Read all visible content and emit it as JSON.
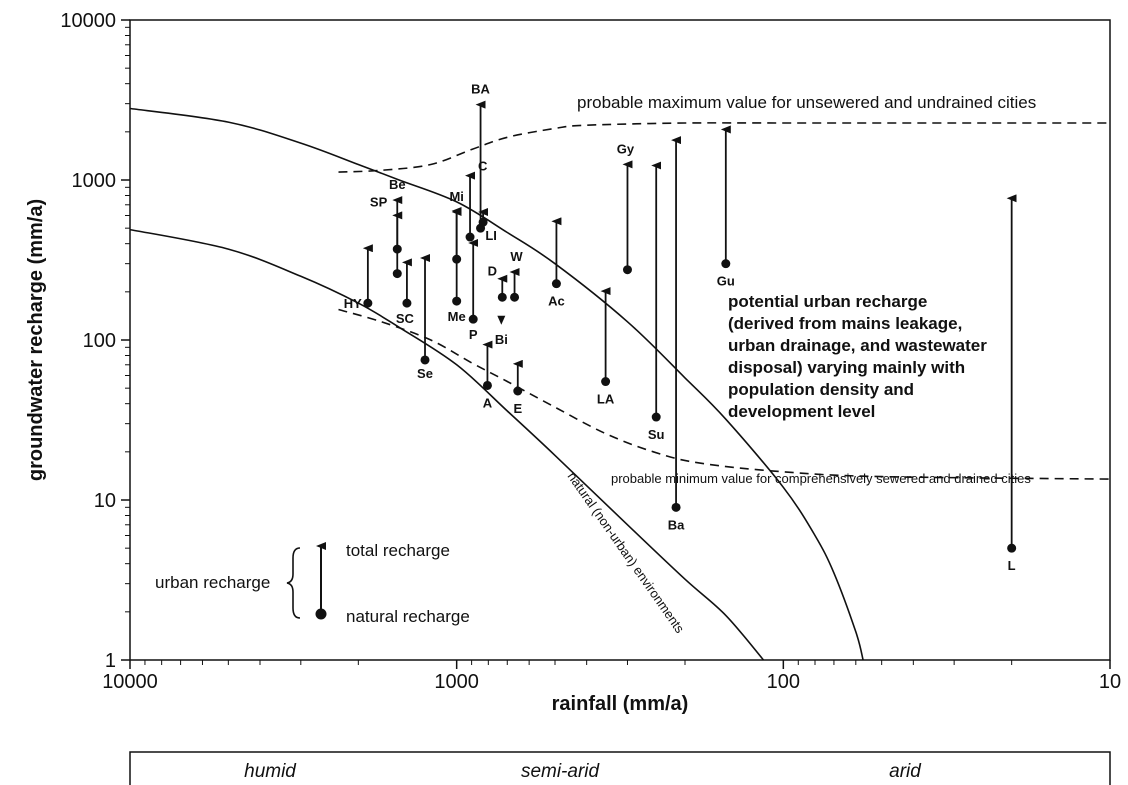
{
  "chart_data": {
    "type": "scatter",
    "xlabel": "rainfall (mm/a)",
    "ylabel": "groundwater recharge (mm/a)",
    "x_scale": "log",
    "y_scale": "log",
    "x_reversed": true,
    "xlim": [
      10000,
      10
    ],
    "ylim": [
      1,
      10000
    ],
    "x_ticks": [
      {
        "value": 10000,
        "label": "10000"
      },
      {
        "value": 1000,
        "label": "1000"
      },
      {
        "value": 100,
        "label": "100"
      },
      {
        "value": 10,
        "label": "10"
      }
    ],
    "y_ticks": [
      {
        "value": 10000,
        "label": "10000"
      },
      {
        "value": 1000,
        "label": "1000"
      },
      {
        "value": 100,
        "label": "100"
      },
      {
        "value": 10,
        "label": "10"
      },
      {
        "value": 1,
        "label": "1"
      }
    ],
    "grid": false,
    "points": [
      {
        "label": "BA",
        "x": 845,
        "natural": 500,
        "total": 3000
      },
      {
        "label": "Be",
        "x": 1520,
        "natural": 370,
        "total": 760
      },
      {
        "label": "SP",
        "x": 1520,
        "natural": 260,
        "total": 610
      },
      {
        "label": "LI",
        "x": 830,
        "natural": 545,
        "total": 640
      },
      {
        "label": "Mi",
        "x": 1000,
        "natural": 320,
        "total": 640
      },
      {
        "label": "C",
        "x": 910,
        "natural": 440,
        "total": 1080
      },
      {
        "label": "HY",
        "x": 1870,
        "natural": 170,
        "total": 380
      },
      {
        "label": "SC",
        "x": 1420,
        "natural": 170,
        "total": 310
      },
      {
        "label": "Me",
        "x": 1000,
        "natural": 175,
        "total": 650
      },
      {
        "label": "P",
        "x": 890,
        "natural": 135,
        "total": 410
      },
      {
        "label": "D",
        "x": 725,
        "natural": 185,
        "total": 245
      },
      {
        "label": "W",
        "x": 665,
        "natural": 185,
        "total": 270
      },
      {
        "label": "Bi",
        "x": 730,
        "natural": null,
        "total": 130
      },
      {
        "label": "Se",
        "x": 1250,
        "natural": 75,
        "total": 330
      },
      {
        "label": "A",
        "x": 805,
        "natural": 52,
        "total": 95
      },
      {
        "label": "E",
        "x": 650,
        "natural": 48,
        "total": 72
      },
      {
        "label": "Ac",
        "x": 495,
        "natural": 225,
        "total": 560
      },
      {
        "label": "LA",
        "x": 350,
        "natural": 55,
        "total": 205
      },
      {
        "label": "Gy",
        "x": 300,
        "natural": 275,
        "total": 1270
      },
      {
        "label": "Su",
        "x": 245,
        "natural": 33,
        "total": 1250
      },
      {
        "label": "Ba",
        "x": 213,
        "natural": 9,
        "total": 1800
      },
      {
        "label": "Gu",
        "x": 150,
        "natural": 300,
        "total": 2100
      },
      {
        "label": "L",
        "x": 20,
        "natural": 5,
        "total": 780
      }
    ],
    "curves": [
      {
        "name": "natural (non-urban) environments",
        "style": "solid",
        "points": [
          [
            10000,
            490
          ],
          [
            5000,
            370
          ],
          [
            3000,
            250
          ],
          [
            2000,
            170
          ],
          [
            1500,
            120
          ],
          [
            1000,
            70
          ],
          [
            700,
            36
          ],
          [
            500,
            19
          ],
          [
            300,
            7
          ],
          [
            200,
            3.2
          ],
          [
            150,
            1.9
          ],
          [
            115,
            1
          ]
        ]
      },
      {
        "name": "upper natural curve",
        "style": "solid",
        "points": [
          [
            10000,
            2800
          ],
          [
            5000,
            2300
          ],
          [
            3000,
            1700
          ],
          [
            2000,
            1250
          ],
          [
            1500,
            1000
          ],
          [
            1000,
            730
          ],
          [
            700,
            470
          ],
          [
            500,
            300
          ],
          [
            300,
            130
          ],
          [
            200,
            58
          ],
          [
            150,
            32
          ],
          [
            100,
            12
          ],
          [
            80,
            6
          ],
          [
            70,
            3.5
          ],
          [
            60,
            1.5
          ],
          [
            57,
            1
          ]
        ]
      },
      {
        "name": "probable maximum value for unsewered and undrained cities",
        "style": "dashed",
        "points": [
          [
            2300,
            1120
          ],
          [
            1700,
            1150
          ],
          [
            1200,
            1250
          ],
          [
            900,
            1550
          ],
          [
            700,
            1850
          ],
          [
            500,
            2100
          ],
          [
            400,
            2200
          ],
          [
            200,
            2270
          ],
          [
            100,
            2270
          ],
          [
            30,
            2270
          ],
          [
            10,
            2270
          ]
        ]
      },
      {
        "name": "probable minimum value for comprehensively sewered and drained cities",
        "style": "dashed",
        "points": [
          [
            2300,
            155
          ],
          [
            1700,
            130
          ],
          [
            1200,
            100
          ],
          [
            900,
            72
          ],
          [
            700,
            55
          ],
          [
            500,
            38
          ],
          [
            350,
            26
          ],
          [
            250,
            20
          ],
          [
            180,
            17
          ],
          [
            100,
            15
          ],
          [
            50,
            14
          ],
          [
            10,
            13.5
          ]
        ]
      }
    ],
    "annotations": {
      "max_curve": "probable maximum value for unsewered and undrained cities",
      "min_curve": "probable minimum value for comprehensively sewered and drained cities",
      "natural_curve": "natural (non-urban) environments",
      "potential_lines": [
        "potential urban recharge",
        "(derived from mains leakage,",
        "urban drainage, and wastewater",
        "disposal) varying mainly with",
        "population density and",
        "development level"
      ]
    },
    "legend": {
      "group": "urban recharge",
      "total": "total recharge",
      "natural": "natural recharge"
    },
    "zones": [
      "humid",
      "semi-arid",
      "arid"
    ]
  }
}
